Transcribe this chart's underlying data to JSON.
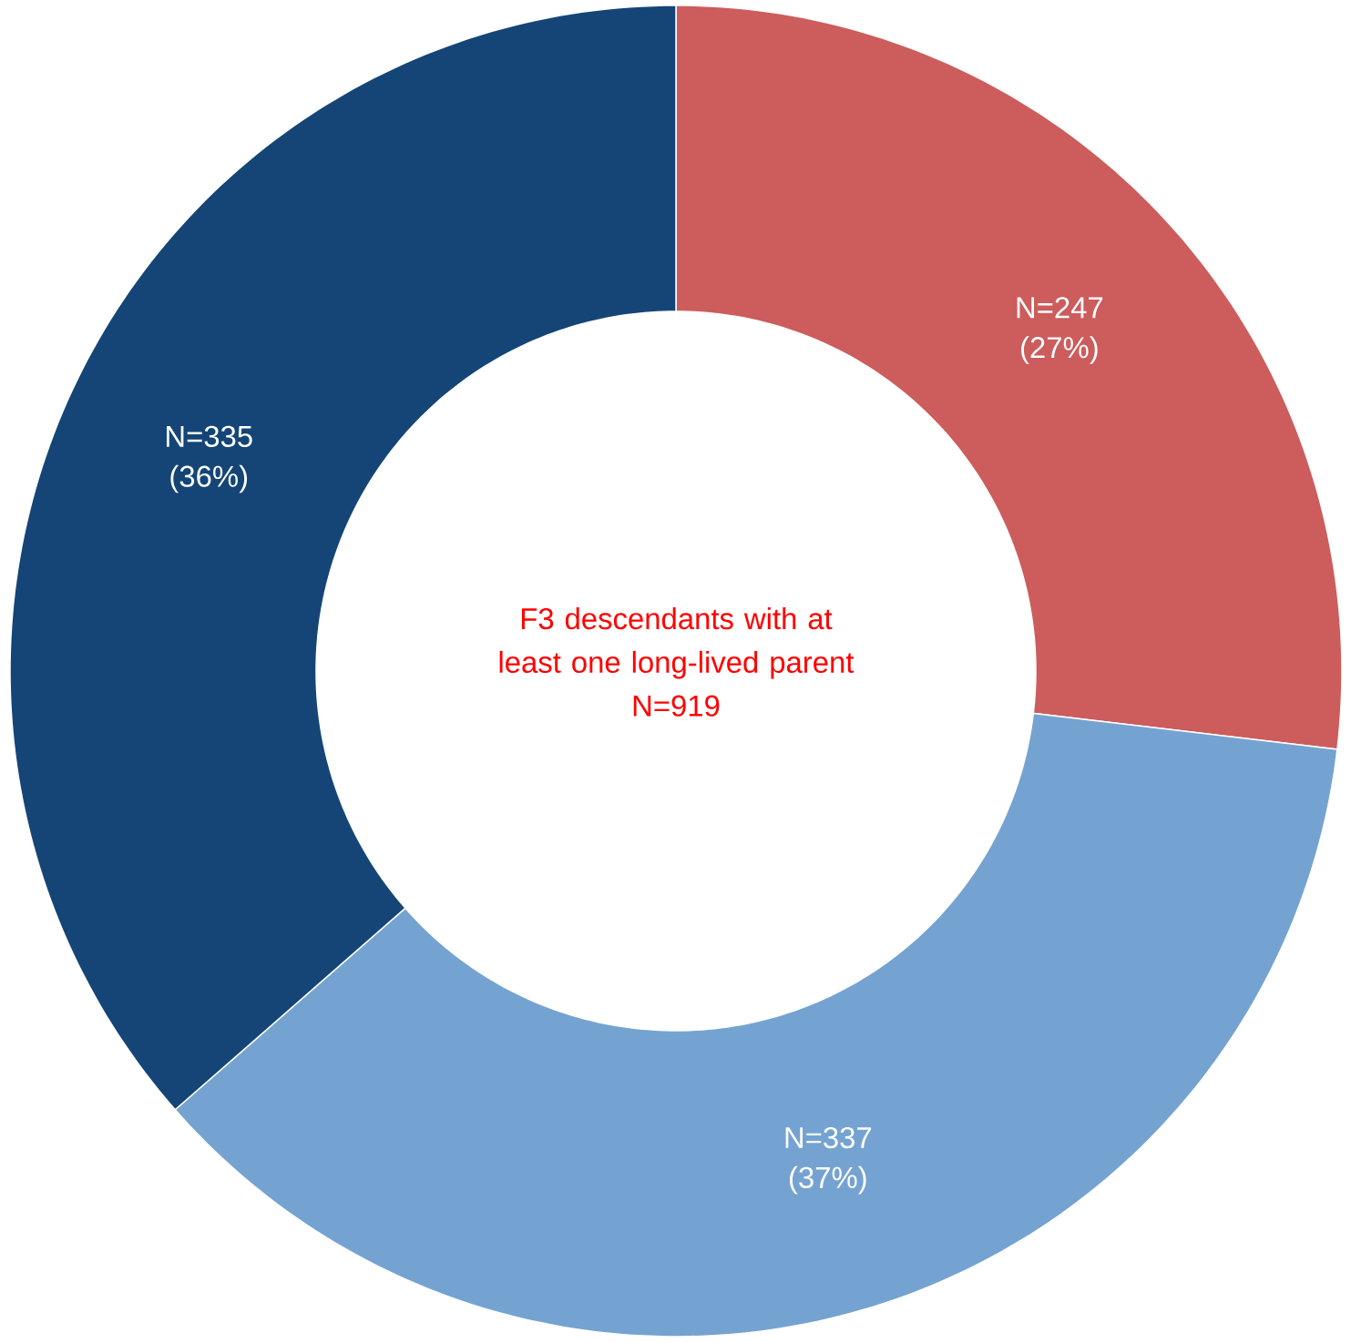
{
  "chart_data": {
    "type": "donut",
    "title": "F3 descendants with at least one long-lived parent",
    "subtitle": "N=919",
    "categories": [
      null,
      null,
      null
    ],
    "values": [
      247,
      337,
      335
    ],
    "colors": [
      "#cd5c5c",
      "#75a3d1",
      "#144576"
    ],
    "value_labels": [
      "N=247 (27%)",
      "N=337 (37%)",
      "N=335 (36%)"
    ]
  }
}
